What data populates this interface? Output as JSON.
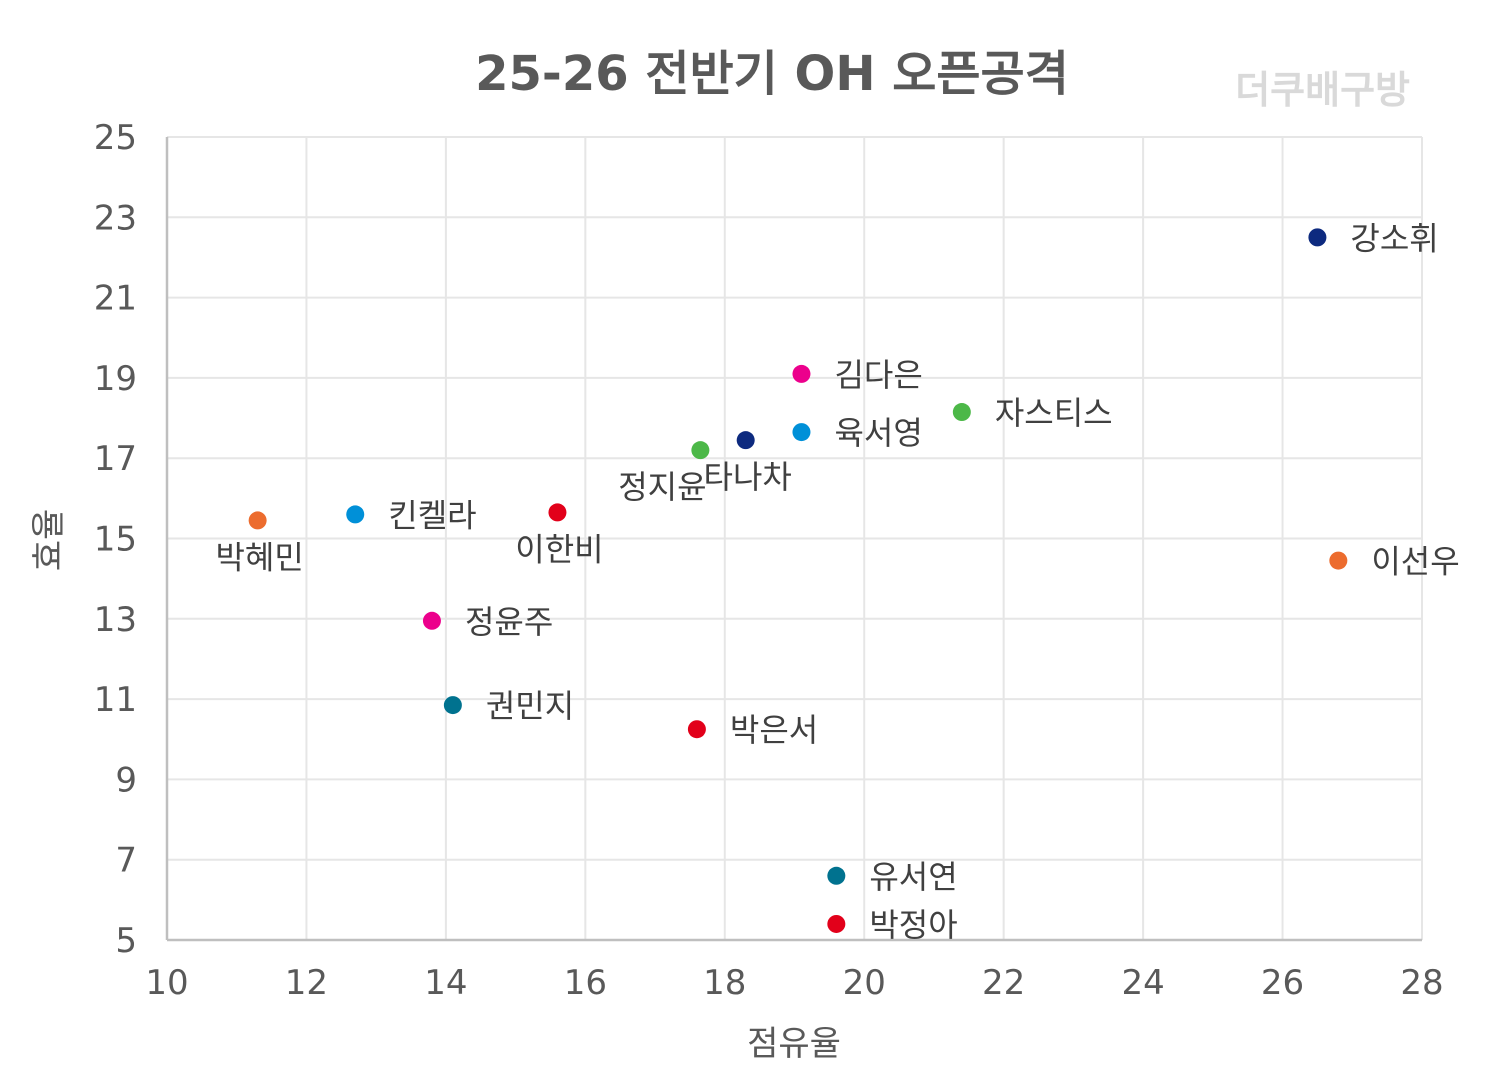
{
  "chart_data": {
    "type": "scatter",
    "title": "25-26 전반기 OH 오픈공격",
    "watermark": "더쿠배구방",
    "xlabel": "점유율",
    "ylabel": "효율",
    "xlim": [
      10,
      28
    ],
    "ylim": [
      5,
      25
    ],
    "x_ticks": [
      10,
      12,
      14,
      16,
      18,
      20,
      22,
      24,
      26,
      28
    ],
    "y_ticks": [
      5,
      7,
      9,
      11,
      13,
      15,
      17,
      19,
      21,
      23,
      25
    ],
    "grid": true,
    "points": [
      {
        "name": "강소휘",
        "x": 26.5,
        "y": 22.5,
        "color": "#0d2a7f",
        "label_pos": "right"
      },
      {
        "name": "김다은",
        "x": 19.1,
        "y": 19.1,
        "color": "#ec008c",
        "label_pos": "right"
      },
      {
        "name": "자스티스",
        "x": 21.4,
        "y": 18.15,
        "color": "#4cb848",
        "label_pos": "right"
      },
      {
        "name": "육서영",
        "x": 19.1,
        "y": 17.65,
        "color": "#0090d8",
        "label_pos": "right"
      },
      {
        "name": "타나차",
        "x": 18.3,
        "y": 17.45,
        "color": "#0d2a7f",
        "label_pos": "below"
      },
      {
        "name": "정지윤",
        "x": 17.65,
        "y": 17.2,
        "color": "#4cb848",
        "label_pos": "below-left"
      },
      {
        "name": "킨켈라",
        "x": 12.7,
        "y": 15.6,
        "color": "#0090d8",
        "label_pos": "right"
      },
      {
        "name": "이한비",
        "x": 15.6,
        "y": 15.65,
        "color": "#e2001a",
        "label_pos": "below"
      },
      {
        "name": "박혜민",
        "x": 11.3,
        "y": 15.45,
        "color": "#ec6c2e",
        "label_pos": "below"
      },
      {
        "name": "이선우",
        "x": 26.8,
        "y": 14.45,
        "color": "#ec6c2e",
        "label_pos": "right"
      },
      {
        "name": "정윤주",
        "x": 13.8,
        "y": 12.95,
        "color": "#ec008c",
        "label_pos": "right"
      },
      {
        "name": "권민지",
        "x": 14.1,
        "y": 10.85,
        "color": "#00728f",
        "label_pos": "right"
      },
      {
        "name": "박은서",
        "x": 17.6,
        "y": 10.25,
        "color": "#e2001a",
        "label_pos": "right"
      },
      {
        "name": "유서연",
        "x": 19.6,
        "y": 6.6,
        "color": "#00728f",
        "label_pos": "right"
      },
      {
        "name": "박정아",
        "x": 19.6,
        "y": 5.4,
        "color": "#e2001a",
        "label_pos": "right"
      }
    ]
  }
}
